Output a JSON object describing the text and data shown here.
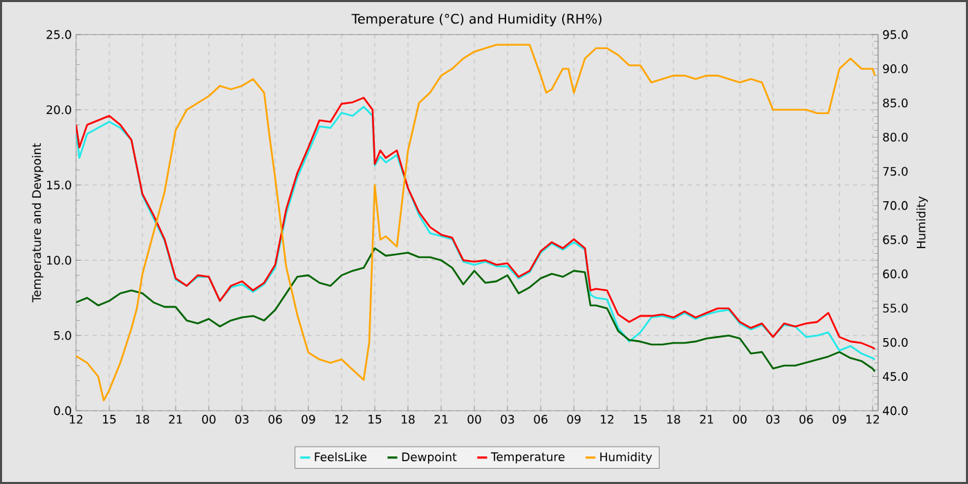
{
  "chart_data": {
    "type": "line",
    "title": "Temperature (°C) and Humidity (RH%)",
    "ylabel": "Temperature and Dewpoint",
    "y2label": "Humidity",
    "xlim": [
      12,
      84.5
    ],
    "ylim": [
      0,
      25
    ],
    "y2lim": [
      40,
      95
    ],
    "xticks": [
      12,
      15,
      18,
      21,
      {
        "value": 24,
        "label": "00"
      },
      {
        "value": 27,
        "label": "03"
      },
      {
        "value": 30,
        "label": "06"
      },
      {
        "value": 33,
        "label": "09"
      },
      {
        "value": 36,
        "label": "12"
      },
      {
        "value": 39,
        "label": "15"
      },
      {
        "value": 42,
        "label": "18"
      },
      {
        "value": 45,
        "label": "21"
      },
      {
        "value": 48,
        "label": "00"
      },
      {
        "value": 51,
        "label": "03"
      },
      {
        "value": 54,
        "label": "06"
      },
      {
        "value": 57,
        "label": "09"
      },
      {
        "value": 60,
        "label": "12"
      },
      {
        "value": 63,
        "label": "15"
      },
      {
        "value": 66,
        "label": "18"
      },
      {
        "value": 69,
        "label": "21"
      },
      {
        "value": 72,
        "label": "00"
      },
      {
        "value": 75,
        "label": "03"
      },
      {
        "value": 78,
        "label": "06"
      },
      {
        "value": 81,
        "label": "09"
      },
      {
        "value": 84,
        "label": "12"
      }
    ],
    "yticks": [
      {
        "value": 0,
        "label": "0.0"
      },
      {
        "value": 5,
        "label": "5.0"
      },
      {
        "value": 10,
        "label": "10.0"
      },
      {
        "value": 15,
        "label": "15.0"
      },
      {
        "value": 20,
        "label": "20.0"
      },
      {
        "value": 25,
        "label": "25.0"
      }
    ],
    "y2ticks": [
      {
        "value": 40,
        "label": "40.0"
      },
      {
        "value": 45,
        "label": "45.0"
      },
      {
        "value": 50,
        "label": "50.0"
      },
      {
        "value": 55,
        "label": "55.0"
      },
      {
        "value": 60,
        "label": "60.0"
      },
      {
        "value": 65,
        "label": "65.0"
      },
      {
        "value": 70,
        "label": "70.0"
      },
      {
        "value": 75,
        "label": "75.0"
      },
      {
        "value": 80,
        "label": "80.0"
      },
      {
        "value": 85,
        "label": "85.0"
      },
      {
        "value": 90,
        "label": "90.0"
      },
      {
        "value": 95,
        "label": "95.0"
      }
    ],
    "grid": true,
    "legend": "bottom",
    "marker": "none",
    "series": [
      {
        "name": "FeelsLike",
        "color": "#22e8e8",
        "x": [
          12,
          12.3,
          13,
          14,
          15,
          16,
          17,
          18,
          19,
          20,
          21,
          22,
          23,
          24,
          25,
          26,
          27,
          28,
          29,
          30,
          31,
          32,
          33,
          34,
          35,
          36,
          37,
          38,
          38.8,
          39,
          39.5,
          40,
          41,
          42,
          43,
          44,
          45,
          46,
          47,
          48,
          49,
          50,
          51,
          52,
          53,
          54,
          55,
          56,
          57,
          58,
          58.5,
          59,
          60,
          61,
          62,
          63,
          64,
          65,
          66,
          67,
          68,
          69,
          70,
          71,
          72,
          73,
          74,
          75,
          76,
          77,
          78,
          79,
          80,
          81,
          82,
          83,
          84,
          84.2
        ],
        "values": [
          18.6,
          16.8,
          18.4,
          18.8,
          19.2,
          18.8,
          18.0,
          14.3,
          12.8,
          11.3,
          8.7,
          8.3,
          8.9,
          8.9,
          7.3,
          8.2,
          8.4,
          7.9,
          8.4,
          9.5,
          13.1,
          15.5,
          17.2,
          18.9,
          18.8,
          19.8,
          19.6,
          20.2,
          19.6,
          16.3,
          16.9,
          16.5,
          17.0,
          14.8,
          13.0,
          11.8,
          11.6,
          11.4,
          9.9,
          9.7,
          9.9,
          9.6,
          9.6,
          8.8,
          9.2,
          10.5,
          11.1,
          10.7,
          11.2,
          10.7,
          7.7,
          7.5,
          7.4,
          5.5,
          4.6,
          5.2,
          6.2,
          6.3,
          6.1,
          6.5,
          6.1,
          6.4,
          6.6,
          6.7,
          5.8,
          5.4,
          5.7,
          4.9,
          5.7,
          5.6,
          4.9,
          5.0,
          5.2,
          4.0,
          4.3,
          3.8,
          3.5,
          3.4
        ]
      },
      {
        "name": "Dewpoint",
        "color": "#006400",
        "x": [
          12,
          13,
          14,
          15,
          16,
          17,
          18,
          19,
          20,
          21,
          22,
          23,
          24,
          25,
          26,
          27,
          28,
          29,
          30,
          31,
          32,
          33,
          34,
          35,
          36,
          37,
          38,
          39,
          40,
          41,
          42,
          43,
          44,
          45,
          46,
          47,
          48,
          49,
          50,
          51,
          52,
          53,
          54,
          55,
          56,
          57,
          58,
          58.5,
          59,
          60,
          61,
          62,
          63,
          64,
          65,
          66,
          67,
          68,
          69,
          70,
          71,
          72,
          73,
          74,
          75,
          76,
          77,
          78,
          79,
          80,
          81,
          82,
          83,
          84,
          84.2
        ],
        "values": [
          7.2,
          7.5,
          7.0,
          7.3,
          7.8,
          8.0,
          7.8,
          7.2,
          6.9,
          6.9,
          6.0,
          5.8,
          6.1,
          5.6,
          6.0,
          6.2,
          6.3,
          6.0,
          6.7,
          7.8,
          8.9,
          9.0,
          8.5,
          8.3,
          9.0,
          9.3,
          9.5,
          10.8,
          10.3,
          10.4,
          10.5,
          10.2,
          10.2,
          10.0,
          9.5,
          8.4,
          9.3,
          8.5,
          8.6,
          9.0,
          7.8,
          8.2,
          8.8,
          9.1,
          8.9,
          9.3,
          9.2,
          7.0,
          7.0,
          6.8,
          5.3,
          4.7,
          4.6,
          4.4,
          4.4,
          4.5,
          4.5,
          4.6,
          4.8,
          4.9,
          5.0,
          4.8,
          3.8,
          3.9,
          2.8,
          3.0,
          3.0,
          3.2,
          3.4,
          3.6,
          3.9,
          3.5,
          3.3,
          2.8,
          2.6
        ]
      },
      {
        "name": "Temperature",
        "color": "#ff0000",
        "x": [
          12,
          12.3,
          13,
          14,
          15,
          16,
          17,
          18,
          19,
          20,
          21,
          22,
          23,
          24,
          25,
          26,
          27,
          28,
          29,
          30,
          31,
          32,
          33,
          34,
          35,
          36,
          37,
          38,
          38.8,
          39,
          39.5,
          40,
          41,
          42,
          43,
          44,
          45,
          46,
          47,
          48,
          49,
          50,
          51,
          52,
          53,
          54,
          55,
          56,
          57,
          58,
          58.5,
          59,
          60,
          61,
          62,
          63,
          64,
          65,
          66,
          67,
          68,
          69,
          70,
          71,
          72,
          73,
          74,
          75,
          76,
          77,
          78,
          79,
          80,
          81,
          82,
          83,
          84,
          84.2
        ],
        "values": [
          19.0,
          17.5,
          19.0,
          19.3,
          19.6,
          19.0,
          18.0,
          14.4,
          13.0,
          11.4,
          8.8,
          8.3,
          9.0,
          8.9,
          7.3,
          8.3,
          8.6,
          8.0,
          8.5,
          9.7,
          13.4,
          15.8,
          17.5,
          19.3,
          19.2,
          20.4,
          20.5,
          20.8,
          20.0,
          16.4,
          17.3,
          16.8,
          17.3,
          14.8,
          13.2,
          12.2,
          11.7,
          11.5,
          10.0,
          9.9,
          10.0,
          9.7,
          9.8,
          8.9,
          9.3,
          10.6,
          11.2,
          10.8,
          11.4,
          10.8,
          8.0,
          8.1,
          8.0,
          6.4,
          5.9,
          6.3,
          6.3,
          6.4,
          6.2,
          6.6,
          6.2,
          6.5,
          6.8,
          6.8,
          5.9,
          5.5,
          5.8,
          4.9,
          5.8,
          5.6,
          5.8,
          5.9,
          6.5,
          4.9,
          4.6,
          4.5,
          4.2,
          4.1
        ]
      },
      {
        "name": "Humidity",
        "color": "#ffa500",
        "axis": "y2",
        "x": [
          12,
          13,
          14,
          14.5,
          15,
          16,
          17,
          17.5,
          18,
          19,
          20,
          21,
          22,
          23,
          24,
          25,
          26,
          27,
          28,
          29,
          29.5,
          30,
          31,
          32,
          33,
          34,
          35,
          36,
          37,
          38,
          38.5,
          39,
          39.5,
          40,
          41,
          42,
          43,
          44,
          45,
          46,
          47,
          48,
          49,
          50,
          51,
          52,
          53,
          54,
          54.5,
          55,
          56,
          56.5,
          57,
          58,
          59,
          60,
          61,
          62,
          63,
          64,
          65,
          66,
          67,
          68,
          69,
          70,
          71,
          72,
          73,
          74,
          75,
          76,
          77,
          78,
          79,
          80,
          81,
          82,
          83,
          84,
          84.2
        ],
        "values": [
          48,
          47,
          45,
          41.5,
          43,
          47,
          52,
          55,
          60,
          66,
          72,
          81,
          84,
          85,
          86,
          87.5,
          87,
          87.5,
          88.5,
          86.5,
          80,
          74,
          61,
          54,
          48.5,
          47.5,
          47,
          47.5,
          46,
          44.5,
          50,
          73,
          65,
          65.5,
          64,
          78,
          85,
          86.5,
          89,
          90,
          91.5,
          92.5,
          93,
          93.5,
          93.5,
          93.5,
          93.5,
          89,
          86.5,
          87,
          90,
          90,
          86.5,
          91.5,
          93,
          93,
          92,
          90.5,
          90.5,
          88,
          88.5,
          89,
          89,
          88.5,
          89,
          89,
          88.5,
          88,
          88.5,
          88,
          84,
          84,
          84,
          84,
          83.5,
          83.5,
          90,
          91.5,
          90,
          90,
          89
        ]
      }
    ]
  }
}
